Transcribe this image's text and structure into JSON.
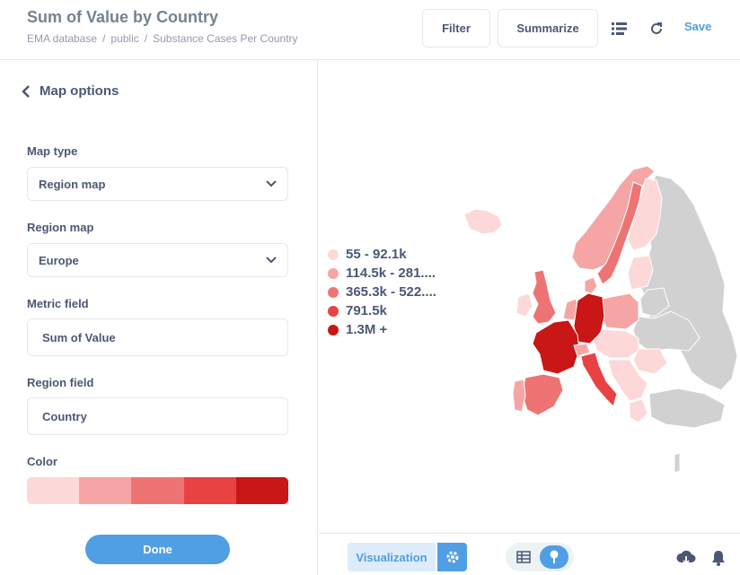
{
  "header": {
    "title": "Sum of Value by Country",
    "breadcrumb": [
      "EMA database",
      "public",
      "Substance Cases Per Country"
    ],
    "filter_label": "Filter",
    "summarize_label": "Summarize",
    "save_label": "Save",
    "icons": [
      "list-icon",
      "refresh-icon"
    ]
  },
  "sidebar": {
    "back_label": "Map options",
    "map_type_label": "Map type",
    "map_type_value": "Region map",
    "region_map_label": "Region map",
    "region_map_value": "Europe",
    "metric_field_label": "Metric field",
    "metric_field_value": "Sum of Value",
    "region_field_label": "Region field",
    "region_field_value": "Country",
    "color_label": "Color",
    "color_swatches": [
      "#fdd8d8",
      "#f6a5a5",
      "#ee7474",
      "#e84242",
      "#c91616"
    ],
    "done_label": "Done"
  },
  "legend": [
    {
      "label": "55 - 92.1k",
      "color": "#fdd8d8"
    },
    {
      "label": "114.5k - 281....",
      "color": "#f6a5a5"
    },
    {
      "label": "365.3k - 522....",
      "color": "#ee7474"
    },
    {
      "label": "791.5k",
      "color": "#e84242"
    },
    {
      "label": "1.3M +",
      "color": "#c91616"
    }
  ],
  "footer": {
    "visualization_label": "Visualization",
    "icons": [
      "gear-icon",
      "table-icon",
      "pin-icon",
      "download-icon",
      "bell-icon"
    ]
  },
  "colors": {
    "accent": "#509ee3",
    "no_data": "#d1d1d1"
  }
}
